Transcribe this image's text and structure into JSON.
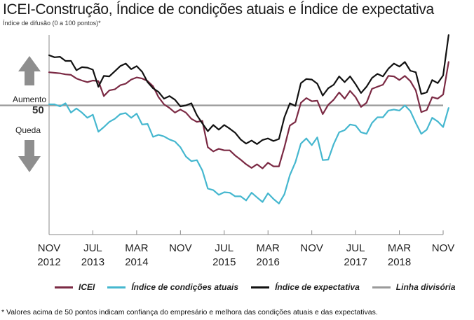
{
  "title": "ICEI-Construção, Índice de condições atuais e Índice de expectativa",
  "subtitle": "Índice de difusão (0 a 100 pontos)*",
  "footnote": "* Valores acima de 50 pontos indicam confiança do empresário e melhora das condições atuais e das expectativas.",
  "annotations": {
    "up": "Aumento",
    "fifty": "50",
    "down": "Queda"
  },
  "colors": {
    "icei": "#7b2a44",
    "atuais": "#45b7cf",
    "expectativa": "#111111",
    "divisoria": "#9a9a9a",
    "arrow": "#8e8e8e",
    "axis": "#888888"
  },
  "chart_data": {
    "type": "line",
    "title": "ICEI-Construção, Índice de condições atuais e Índice de expectativa",
    "ylabel": "Índice de difusão (0 a 100 pontos)*",
    "x_range": [
      "2012-11",
      "2018-11"
    ],
    "x_ticks": [
      {
        "date": "2012-11",
        "month": "NOV",
        "year": "2012"
      },
      {
        "date": "2013-07",
        "month": "JUL",
        "year": "2013"
      },
      {
        "date": "2014-03",
        "month": "MAR",
        "year": "2014"
      },
      {
        "date": "2014-11",
        "month": "NOV",
        "year": ""
      },
      {
        "date": "2015-07",
        "month": "JUL",
        "year": "2015"
      },
      {
        "date": "2016-03",
        "month": "MAR",
        "year": "2016"
      },
      {
        "date": "2016-11",
        "month": "NOV",
        "year": ""
      },
      {
        "date": "2017-07",
        "month": "JUL",
        "year": "2017"
      },
      {
        "date": "2018-03",
        "month": "MAR",
        "year": "2018"
      },
      {
        "date": "2018-11",
        "month": "NOV",
        "year": ""
      }
    ],
    "ylim": [
      25,
      67
    ],
    "reference_line": {
      "name": "Linha divisória",
      "value": 50
    },
    "legend_position": "bottom",
    "series": [
      {
        "name": "ICEI",
        "key": "icei",
        "values": [
          [
            "2012-11",
            56.4
          ],
          [
            "2012-12",
            56.3
          ],
          [
            "2013-01",
            56.2
          ],
          [
            "2013-02",
            56.0
          ],
          [
            "2013-03",
            55.9
          ],
          [
            "2013-04",
            55.2
          ],
          [
            "2013-05",
            54.8
          ],
          [
            "2013-06",
            54.5
          ],
          [
            "2013-07",
            54.8
          ],
          [
            "2013-08",
            54.7
          ],
          [
            "2013-09",
            51.8
          ],
          [
            "2013-10",
            52.9
          ],
          [
            "2013-11",
            53.1
          ],
          [
            "2013-12",
            53.9
          ],
          [
            "2014-01",
            54.2
          ],
          [
            "2014-02",
            55.0
          ],
          [
            "2014-03",
            55.4
          ],
          [
            "2014-04",
            55.2
          ],
          [
            "2014-05",
            54.7
          ],
          [
            "2014-06",
            53.7
          ],
          [
            "2014-07",
            51.6
          ],
          [
            "2014-08",
            50.2
          ],
          [
            "2014-09",
            49.5
          ],
          [
            "2014-10",
            48.6
          ],
          [
            "2014-11",
            49.2
          ],
          [
            "2014-12",
            48.6
          ],
          [
            "2015-01",
            47.4
          ],
          [
            "2015-02",
            46.8
          ],
          [
            "2015-03",
            47.0
          ],
          [
            "2015-04",
            41.9
          ],
          [
            "2015-05",
            41.1
          ],
          [
            "2015-06",
            41.6
          ],
          [
            "2015-07",
            41.3
          ],
          [
            "2015-08",
            41.3
          ],
          [
            "2015-09",
            40.3
          ],
          [
            "2015-10",
            39.5
          ],
          [
            "2015-11",
            38.6
          ],
          [
            "2015-12",
            37.9
          ],
          [
            "2016-01",
            38.6
          ],
          [
            "2016-02",
            37.8
          ],
          [
            "2016-03",
            38.9
          ],
          [
            "2016-04",
            38.2
          ],
          [
            "2016-05",
            38.2
          ],
          [
            "2016-06",
            41.9
          ],
          [
            "2016-07",
            46.1
          ],
          [
            "2016-08",
            46.8
          ],
          [
            "2016-09",
            50.5
          ],
          [
            "2016-10",
            51.4
          ],
          [
            "2016-11",
            50.8
          ],
          [
            "2016-12",
            50.9
          ],
          [
            "2017-01",
            48.3
          ],
          [
            "2017-02",
            50.1
          ],
          [
            "2017-03",
            51.1
          ],
          [
            "2017-04",
            52.5
          ],
          [
            "2017-05",
            51.3
          ],
          [
            "2017-06",
            52.8
          ],
          [
            "2017-07",
            51.6
          ],
          [
            "2017-08",
            49.7
          ],
          [
            "2017-09",
            50.5
          ],
          [
            "2017-10",
            53.2
          ],
          [
            "2017-11",
            53.6
          ],
          [
            "2017-12",
            54.0
          ],
          [
            "2018-01",
            55.7
          ],
          [
            "2018-02",
            55.6
          ],
          [
            "2018-03",
            54.9
          ],
          [
            "2018-04",
            55.7
          ],
          [
            "2018-05",
            54.7
          ],
          [
            "2018-06",
            52.9
          ],
          [
            "2018-07",
            48.7
          ],
          [
            "2018-08",
            49.1
          ],
          [
            "2018-09",
            51.6
          ],
          [
            "2018-10",
            51.3
          ],
          [
            "2018-11",
            52.1
          ],
          [
            "2018-12",
            58.4
          ]
        ]
      },
      {
        "name": "Índice de condições atuais",
        "key": "atuais",
        "values": [
          [
            "2012-11",
            50.2
          ],
          [
            "2012-12",
            50.2
          ],
          [
            "2013-01",
            49.8
          ],
          [
            "2013-02",
            50.4
          ],
          [
            "2013-03",
            48.6
          ],
          [
            "2013-04",
            49.4
          ],
          [
            "2013-05",
            48.6
          ],
          [
            "2013-06",
            47.6
          ],
          [
            "2013-07",
            48.2
          ],
          [
            "2013-08",
            44.9
          ],
          [
            "2013-09",
            45.8
          ],
          [
            "2013-10",
            46.8
          ],
          [
            "2013-11",
            47.4
          ],
          [
            "2013-12",
            48.3
          ],
          [
            "2014-01",
            48.5
          ],
          [
            "2014-02",
            47.6
          ],
          [
            "2014-03",
            48.4
          ],
          [
            "2014-04",
            46.3
          ],
          [
            "2014-05",
            46.4
          ],
          [
            "2014-06",
            43.9
          ],
          [
            "2014-07",
            44.3
          ],
          [
            "2014-08",
            44.0
          ],
          [
            "2014-09",
            43.4
          ],
          [
            "2014-10",
            43.0
          ],
          [
            "2014-11",
            41.9
          ],
          [
            "2014-12",
            40.1
          ],
          [
            "2015-01",
            39.2
          ],
          [
            "2015-02",
            39.4
          ],
          [
            "2015-03",
            37.4
          ],
          [
            "2015-04",
            33.9
          ],
          [
            "2015-05",
            33.6
          ],
          [
            "2015-06",
            32.7
          ],
          [
            "2015-07",
            33.2
          ],
          [
            "2015-08",
            33.1
          ],
          [
            "2015-09",
            32.4
          ],
          [
            "2015-10",
            32.4
          ],
          [
            "2015-11",
            31.6
          ],
          [
            "2015-12",
            33.1
          ],
          [
            "2016-01",
            32.2
          ],
          [
            "2016-02",
            31.3
          ],
          [
            "2016-03",
            33.0
          ],
          [
            "2016-04",
            31.9
          ],
          [
            "2016-05",
            31.0
          ],
          [
            "2016-06",
            32.8
          ],
          [
            "2016-07",
            36.5
          ],
          [
            "2016-08",
            39.0
          ],
          [
            "2016-09",
            42.6
          ],
          [
            "2016-10",
            43.6
          ],
          [
            "2016-11",
            42.3
          ],
          [
            "2016-12",
            43.8
          ],
          [
            "2017-01",
            39.4
          ],
          [
            "2017-02",
            39.5
          ],
          [
            "2017-03",
            42.5
          ],
          [
            "2017-04",
            44.8
          ],
          [
            "2017-05",
            45.2
          ],
          [
            "2017-06",
            46.3
          ],
          [
            "2017-07",
            46.1
          ],
          [
            "2017-08",
            44.8
          ],
          [
            "2017-09",
            44.5
          ],
          [
            "2017-10",
            46.6
          ],
          [
            "2017-11",
            47.7
          ],
          [
            "2017-12",
            47.7
          ],
          [
            "2018-01",
            49.0
          ],
          [
            "2018-02",
            49.2
          ],
          [
            "2018-03",
            49.0
          ],
          [
            "2018-04",
            50.0
          ],
          [
            "2018-05",
            48.9
          ],
          [
            "2018-06",
            46.6
          ],
          [
            "2018-07",
            44.5
          ],
          [
            "2018-08",
            45.3
          ],
          [
            "2018-09",
            47.6
          ],
          [
            "2018-10",
            46.9
          ],
          [
            "2018-11",
            45.8
          ],
          [
            "2018-12",
            49.5
          ]
        ]
      },
      {
        "name": "Índice de expectativa",
        "key": "expectativa",
        "values": [
          [
            "2012-11",
            59.7
          ],
          [
            "2012-12",
            59.3
          ],
          [
            "2013-01",
            59.4
          ],
          [
            "2013-02",
            58.6
          ],
          [
            "2013-03",
            58.6
          ],
          [
            "2013-04",
            56.8
          ],
          [
            "2013-05",
            57.4
          ],
          [
            "2013-06",
            57.3
          ],
          [
            "2013-07",
            56.9
          ],
          [
            "2013-08",
            53.6
          ],
          [
            "2013-09",
            55.7
          ],
          [
            "2013-10",
            55.6
          ],
          [
            "2013-11",
            56.6
          ],
          [
            "2013-12",
            57.6
          ],
          [
            "2014-01",
            58.1
          ],
          [
            "2014-02",
            57.0
          ],
          [
            "2014-03",
            57.6
          ],
          [
            "2014-04",
            56.5
          ],
          [
            "2014-05",
            54.5
          ],
          [
            "2014-06",
            53.3
          ],
          [
            "2014-07",
            52.6
          ],
          [
            "2014-08",
            51.3
          ],
          [
            "2014-09",
            51.8
          ],
          [
            "2014-10",
            51.1
          ],
          [
            "2014-11",
            49.8
          ],
          [
            "2014-12",
            50.0
          ],
          [
            "2015-01",
            50.4
          ],
          [
            "2015-02",
            48.1
          ],
          [
            "2015-03",
            46.5
          ],
          [
            "2015-04",
            45.0
          ],
          [
            "2015-05",
            46.2
          ],
          [
            "2015-06",
            45.3
          ],
          [
            "2015-07",
            46.2
          ],
          [
            "2015-08",
            45.5
          ],
          [
            "2015-09",
            44.7
          ],
          [
            "2015-10",
            43.4
          ],
          [
            "2015-11",
            42.6
          ],
          [
            "2015-12",
            43.2
          ],
          [
            "2016-01",
            42.5
          ],
          [
            "2016-02",
            43.3
          ],
          [
            "2016-03",
            43.6
          ],
          [
            "2016-04",
            43.1
          ],
          [
            "2016-05",
            43.5
          ],
          [
            "2016-06",
            47.7
          ],
          [
            "2016-07",
            50.4
          ],
          [
            "2016-08",
            49.9
          ],
          [
            "2016-09",
            54.3
          ],
          [
            "2016-10",
            55.1
          ],
          [
            "2016-11",
            55.0
          ],
          [
            "2016-12",
            54.2
          ],
          [
            "2017-01",
            51.9
          ],
          [
            "2017-02",
            53.3
          ],
          [
            "2017-03",
            54.0
          ],
          [
            "2017-04",
            55.6
          ],
          [
            "2017-05",
            54.5
          ],
          [
            "2017-06",
            55.6
          ],
          [
            "2017-07",
            54.1
          ],
          [
            "2017-08",
            52.4
          ],
          [
            "2017-09",
            53.6
          ],
          [
            "2017-10",
            55.3
          ],
          [
            "2017-11",
            56.1
          ],
          [
            "2017-12",
            55.6
          ],
          [
            "2018-01",
            57.1
          ],
          [
            "2018-02",
            58.1
          ],
          [
            "2018-03",
            57.5
          ],
          [
            "2018-04",
            58.4
          ],
          [
            "2018-05",
            56.7
          ],
          [
            "2018-06",
            56.4
          ],
          [
            "2018-07",
            52.2
          ],
          [
            "2018-08",
            52.5
          ],
          [
            "2018-09",
            54.9
          ],
          [
            "2018-10",
            54.3
          ],
          [
            "2018-11",
            55.8
          ],
          [
            "2018-12",
            63.6
          ]
        ]
      }
    ]
  }
}
